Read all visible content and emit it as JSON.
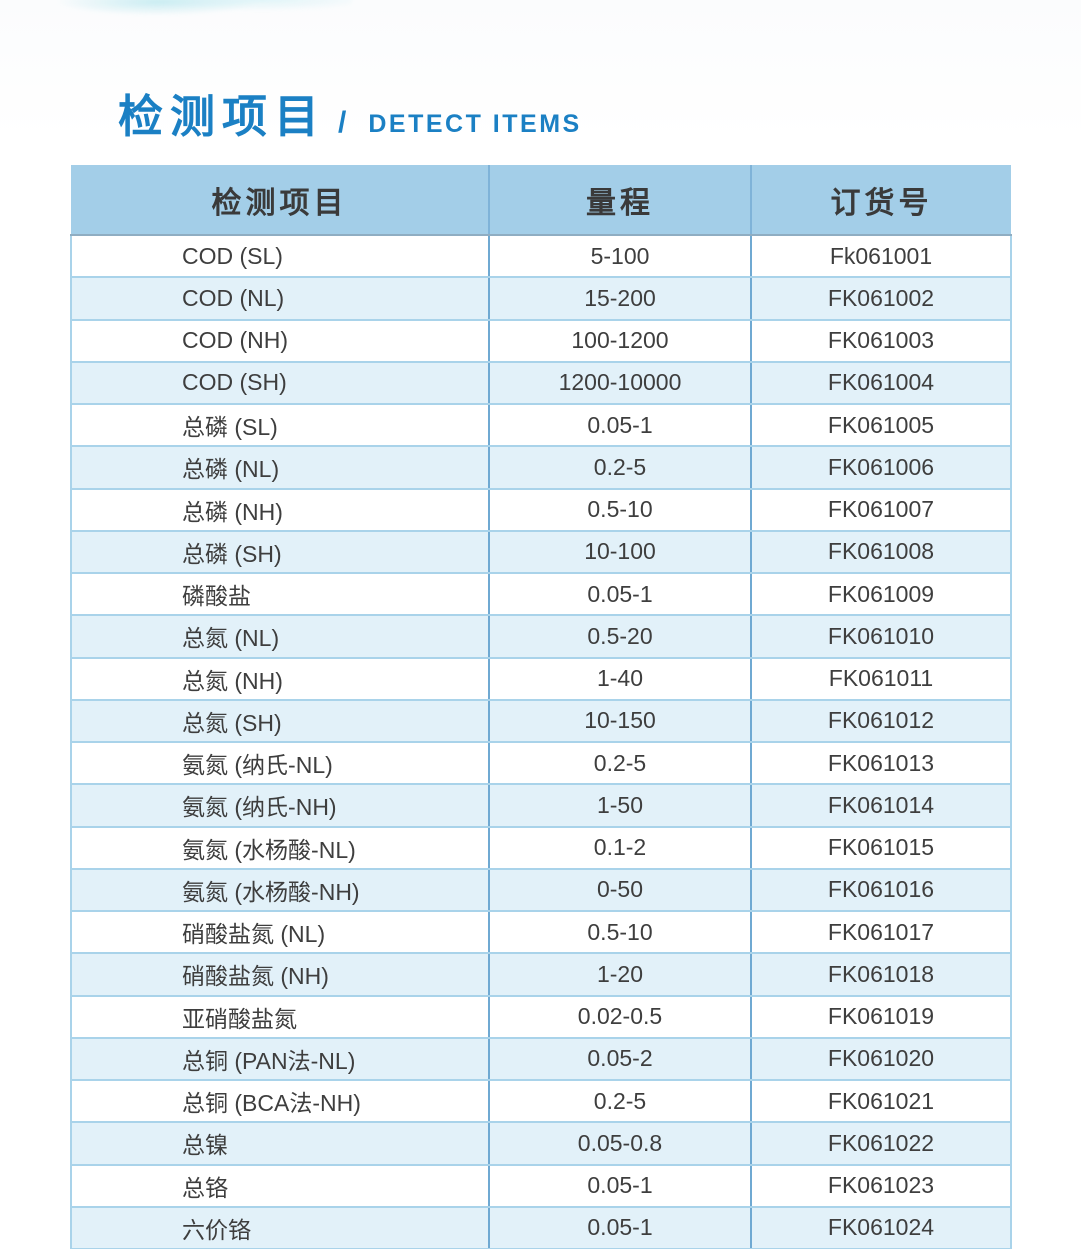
{
  "title": {
    "zh": "检测项目",
    "separator": "/",
    "en": "DETECT ITEMS"
  },
  "colors": {
    "accent_blue": "#1b80c4",
    "header_bg": "#a3cee8",
    "alt_row_bg": "#e2f1f9",
    "vertical_divider": "#6fa9d2",
    "horizontal_divider": "#a9d3ea",
    "header_underline": "#8fadc2",
    "text_dark": "#3e3e3e"
  },
  "table": {
    "headers": [
      "检测项目",
      "量程",
      "订货号"
    ],
    "rows": [
      {
        "item": "COD (SL)",
        "range": "5-100",
        "order_no": "Fk061001"
      },
      {
        "item": "COD (NL)",
        "range": "15-200",
        "order_no": "FK061002"
      },
      {
        "item": "COD (NH)",
        "range": "100-1200",
        "order_no": "FK061003"
      },
      {
        "item": "COD (SH)",
        "range": "1200-10000",
        "order_no": "FK061004"
      },
      {
        "item": "总磷 (SL)",
        "range": "0.05-1",
        "order_no": "FK061005"
      },
      {
        "item": "总磷 (NL)",
        "range": "0.2-5",
        "order_no": "FK061006"
      },
      {
        "item": "总磷 (NH)",
        "range": "0.5-10",
        "order_no": "FK061007"
      },
      {
        "item": "总磷 (SH)",
        "range": "10-100",
        "order_no": "FK061008"
      },
      {
        "item": "磷酸盐",
        "range": "0.05-1",
        "order_no": "FK061009"
      },
      {
        "item": "总氮 (NL)",
        "range": "0.5-20",
        "order_no": "FK061010"
      },
      {
        "item": "总氮 (NH)",
        "range": "1-40",
        "order_no": "FK061011"
      },
      {
        "item": "总氮 (SH)",
        "range": "10-150",
        "order_no": "FK061012"
      },
      {
        "item": "氨氮 (纳氏-NL)",
        "range": "0.2-5",
        "order_no": "FK061013"
      },
      {
        "item": "氨氮 (纳氏-NH)",
        "range": "1-50",
        "order_no": "FK061014"
      },
      {
        "item": "氨氮 (水杨酸-NL)",
        "range": "0.1-2",
        "order_no": "FK061015"
      },
      {
        "item": "氨氮 (水杨酸-NH)",
        "range": "0-50",
        "order_no": "FK061016"
      },
      {
        "item": "硝酸盐氮 (NL)",
        "range": "0.5-10",
        "order_no": "FK061017"
      },
      {
        "item": "硝酸盐氮 (NH)",
        "range": "1-20",
        "order_no": "FK061018"
      },
      {
        "item": "亚硝酸盐氮",
        "range": "0.02-0.5",
        "order_no": "FK061019"
      },
      {
        "item": "总铜 (PAN法-NL)",
        "range": "0.05-2",
        "order_no": "FK061020"
      },
      {
        "item": "总铜 (BCA法-NH)",
        "range": "0.2-5",
        "order_no": "FK061021"
      },
      {
        "item": "总镍",
        "range": "0.05-0.8",
        "order_no": "FK061022"
      },
      {
        "item": "总铬",
        "range": "0.05-1",
        "order_no": "FK061023"
      },
      {
        "item": "六价铬",
        "range": "0.05-1",
        "order_no": "FK061024"
      }
    ]
  }
}
